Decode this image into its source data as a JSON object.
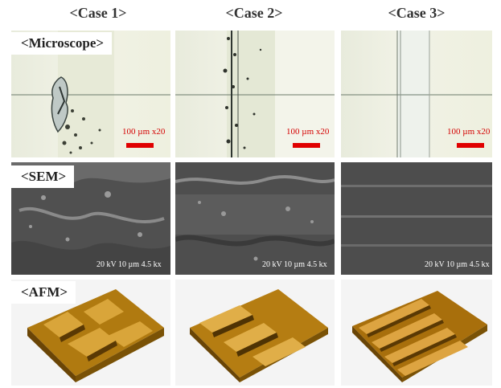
{
  "columns": [
    "<Case 1>",
    "<Case 2>",
    "<Case 3>"
  ],
  "rows": {
    "microscope": "<Microscope>",
    "sem": "<SEM>",
    "afm": "<AFM>"
  },
  "microscope_scale": "100 µm x20",
  "sem_scale": "20 kV 10 µm 4.5 kx",
  "colors": {
    "scale_red": "#e00000",
    "afm_gold": "#b8860b",
    "sem_gray": "#4f4f4f"
  }
}
